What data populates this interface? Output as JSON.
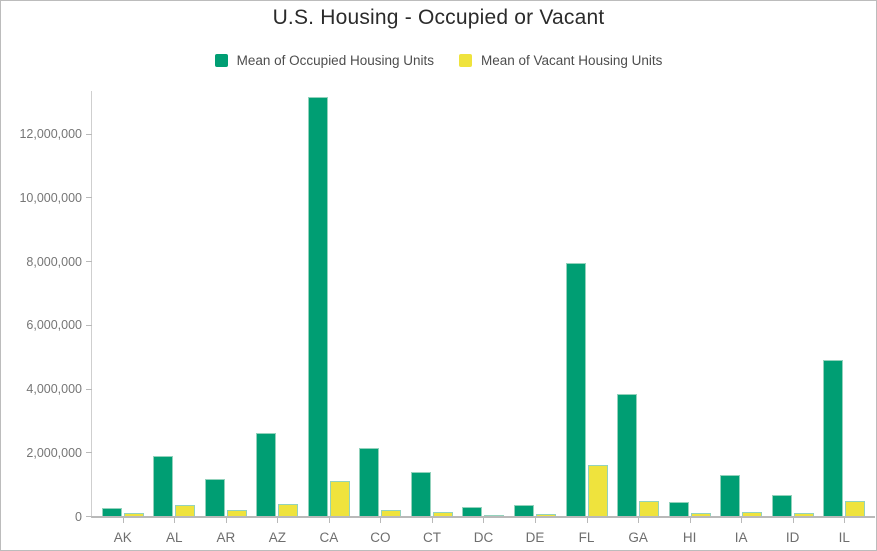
{
  "title": "U.S. Housing - Occupied or Vacant",
  "legend": {
    "items": [
      {
        "label": "Mean of Occupied Housing Units",
        "color": "#009E73"
      },
      {
        "label": "Mean of Vacant Housing Units",
        "color": "#EFE33D"
      }
    ]
  },
  "chart_data": {
    "type": "bar",
    "title": "U.S. Housing - Occupied or Vacant",
    "categories": [
      "AK",
      "AL",
      "AR",
      "AZ",
      "CA",
      "CO",
      "CT",
      "DC",
      "DE",
      "FL",
      "GA",
      "HI",
      "IA",
      "ID",
      "IL"
    ],
    "series": [
      {
        "name": "Mean of Occupied Housing Units",
        "color": "#009E73",
        "values": [
          240000,
          1870000,
          1150000,
          2620000,
          13140000,
          2130000,
          1380000,
          280000,
          340000,
          7930000,
          3830000,
          440000,
          1280000,
          650000,
          4900000
        ]
      },
      {
        "name": "Mean of Vacant Housing Units",
        "color": "#EFE33D",
        "values": [
          90000,
          360000,
          180000,
          380000,
          1100000,
          200000,
          130000,
          40000,
          70000,
          1600000,
          470000,
          90000,
          120000,
          80000,
          470000
        ]
      }
    ],
    "xlabel": "",
    "ylabel": "",
    "ylim": [
      0,
      13333000
    ],
    "yticks": [
      0,
      2000000,
      4000000,
      6000000,
      8000000,
      10000000,
      12000000
    ],
    "ytick_labels": [
      "0",
      "2,000,000",
      "4,000,000",
      "6,000,000",
      "8,000,000",
      "10,000,000",
      "12,000,000"
    ],
    "grid": false,
    "legend_position": "top-center"
  },
  "colors": {
    "occupied_series": "#009E73",
    "vacant_series": "#EFE33D",
    "axis_line": "#b9b9b9",
    "tick_text": "#767676",
    "title_text": "#2b2b2b"
  }
}
